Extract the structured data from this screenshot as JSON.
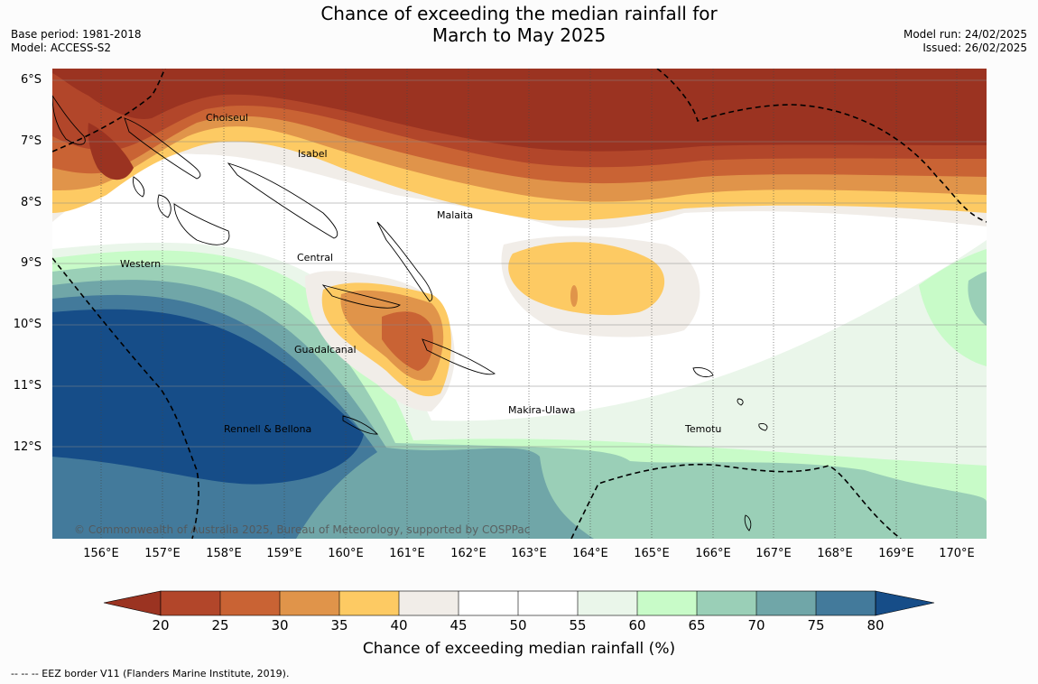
{
  "title_line1": "Chance of exceeding the median rainfall for",
  "title_line2": "March to May 2025",
  "meta_left": {
    "base_period": "Base period: 1981-2018",
    "model": "Model: ACCESS-S2"
  },
  "meta_right": {
    "model_run": "Model run: 24/02/2025",
    "issued": "Issued: 26/02/2025"
  },
  "lat_labels": [
    "6°S",
    "7°S",
    "8°S",
    "9°S",
    "10°S",
    "11°S",
    "12°S"
  ],
  "lon_labels": [
    "156°E",
    "157°E",
    "158°E",
    "159°E",
    "160°E",
    "161°E",
    "162°E",
    "163°E",
    "164°E",
    "165°E",
    "166°E",
    "167°E",
    "168°E",
    "169°E",
    "170°E"
  ],
  "places": {
    "choiseul": "Choiseul",
    "isabel": "Isabel",
    "malaita": "Malaita",
    "western": "Western",
    "central": "Central",
    "guadalcanal": "Guadalcanal",
    "makira": "Makira-Ulawa",
    "temotu": "Temotu",
    "rennell": "Rennell & Bellona"
  },
  "copyright": "© Commonwealth of Australia 2025, Bureau of Meteorology, supported by COSPPac",
  "colorbar": {
    "ticks": [
      "20",
      "25",
      "30",
      "35",
      "40",
      "45",
      "50",
      "55",
      "60",
      "65",
      "70",
      "75",
      "80"
    ],
    "colors": {
      "lt20": "#9b3321",
      "c20_25": "#b2462a",
      "c25_30": "#c96334",
      "c30_35": "#e0944a",
      "c35_40": "#fdca63",
      "c40_45": "#f1ede8",
      "c45_50": "#ffffff",
      "c50_55": "#ffffff",
      "c55_60": "#eaf6ea",
      "c60_65": "#c8fbc8",
      "c65_70": "#9acfb7",
      "c70_75": "#70a6a8",
      "c75_80": "#437a9b",
      "gt80": "#164d88"
    },
    "label": "Chance of exceeding median rainfall (%)"
  },
  "eez_note": "--  --  -- EEZ border V11 (Flanders Marine Institute, 2019)."
}
